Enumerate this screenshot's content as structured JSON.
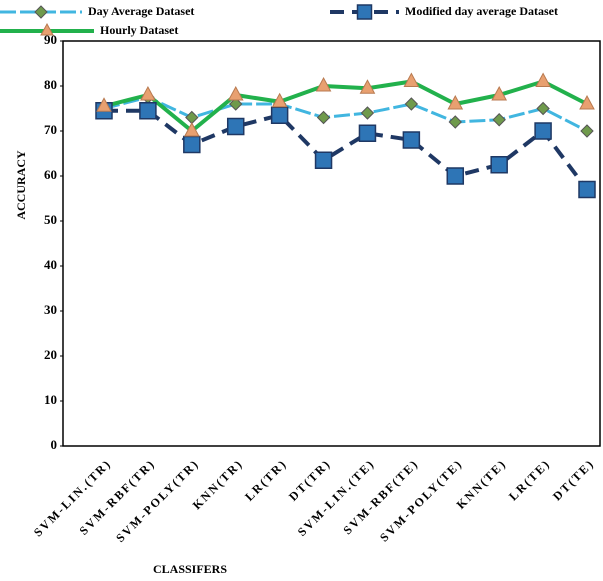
{
  "chart_data": {
    "type": "line",
    "xlabel": "CLASSIFERS",
    "ylabel": "ACCURACY",
    "categories": [
      "SVM-LIN.(TR)",
      "SVM-RBF(TR)",
      "SVM-POLY(TR)",
      "KNN(TR)",
      "LR(TR)",
      "DT(TR)",
      "SVM-LIN.(TE)",
      "SVM-RBF(TE)",
      "SVM-POLY(TE)",
      "KNN(TE)",
      "LR(TE)",
      "DT(TE)"
    ],
    "series": [
      {
        "name": "Day Average Dataset",
        "color": "#41b6e0",
        "marker_color": "#6f9a4c",
        "values": [
          75,
          77.5,
          73,
          76,
          76,
          73,
          74,
          76,
          72,
          72.5,
          75,
          70
        ]
      },
      {
        "name": "Modified day average Dataset",
        "color": "#1f3864",
        "marker_color": "#2e75b6",
        "values": [
          74.5,
          74.5,
          67,
          71,
          73.5,
          63.5,
          69.5,
          68,
          60,
          62.5,
          70,
          57
        ]
      },
      {
        "name": "Hourly Dataset",
        "color": "#22b14c",
        "marker_color": "#e8a070",
        "values": [
          75.5,
          78,
          70,
          78,
          76.5,
          80,
          79.5,
          81,
          76,
          78,
          81,
          76
        ]
      }
    ],
    "ylim": [
      0,
      90
    ],
    "yticks": [
      0,
      10,
      20,
      30,
      40,
      50,
      60,
      70,
      80,
      90
    ]
  }
}
